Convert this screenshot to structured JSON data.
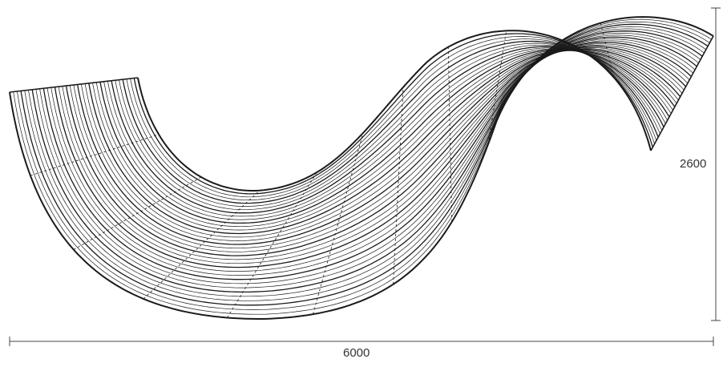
{
  "dimensions": {
    "width_label": "6000",
    "height_label": "2600"
  },
  "colors": {
    "line": "#1a1a1a",
    "dimension_line": "#444444",
    "background": "#ffffff"
  }
}
